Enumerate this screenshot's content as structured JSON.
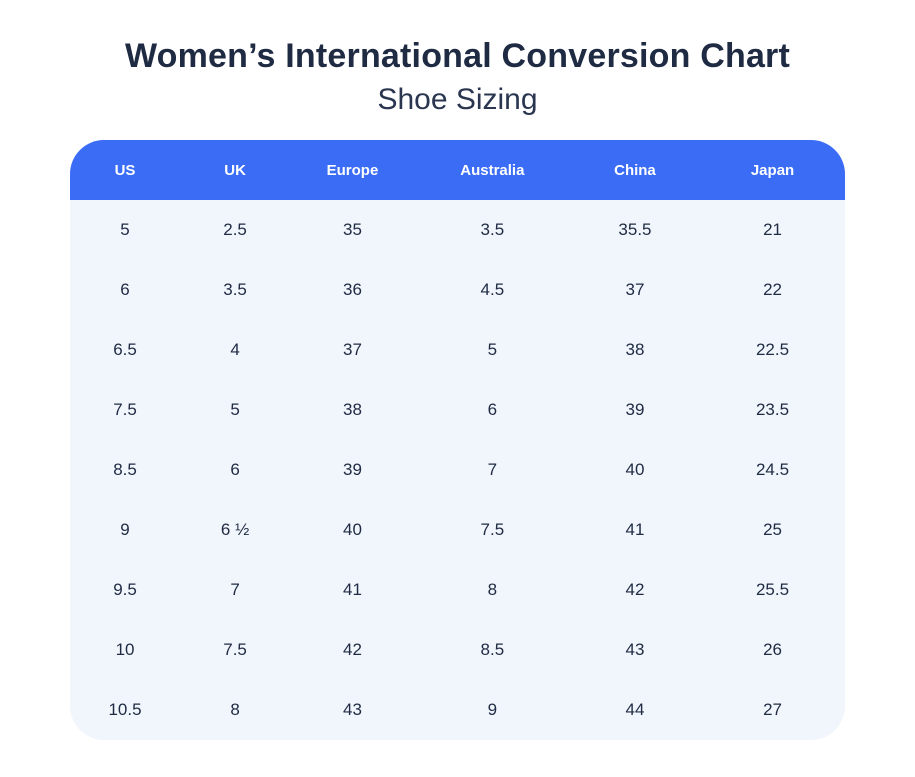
{
  "page": {
    "title": "Women’s International Conversion Chart",
    "subtitle": "Shoe Sizing"
  },
  "colors": {
    "header_bg": "#3A6CF6",
    "header_text": "#FFFFFF",
    "body_bg": "#F1F5FC",
    "cell_text": "#1F2B43",
    "title_text": "#1F2B43",
    "page_bg": "#FFFFFF"
  },
  "chart_data": {
    "type": "table",
    "title": "Women’s International Conversion Chart",
    "subtitle": "Shoe Sizing",
    "columns": [
      "US",
      "UK",
      "Europe",
      "Australia",
      "China",
      "Japan"
    ],
    "rows": [
      [
        "5",
        "2.5",
        "35",
        "3.5",
        "35.5",
        "21"
      ],
      [
        "6",
        "3.5",
        "36",
        "4.5",
        "37",
        "22"
      ],
      [
        "6.5",
        "4",
        "37",
        "5",
        "38",
        "22.5"
      ],
      [
        "7.5",
        "5",
        "38",
        "6",
        "39",
        "23.5"
      ],
      [
        "8.5",
        "6",
        "39",
        "7",
        "40",
        "24.5"
      ],
      [
        "9",
        "6 ½",
        "40",
        "7.5",
        "41",
        "25"
      ],
      [
        "9.5",
        "7",
        "41",
        "8",
        "42",
        "25.5"
      ],
      [
        "10",
        "7.5",
        "42",
        "8.5",
        "43",
        "26"
      ],
      [
        "10.5",
        "8",
        "43",
        "9",
        "44",
        "27"
      ]
    ]
  }
}
